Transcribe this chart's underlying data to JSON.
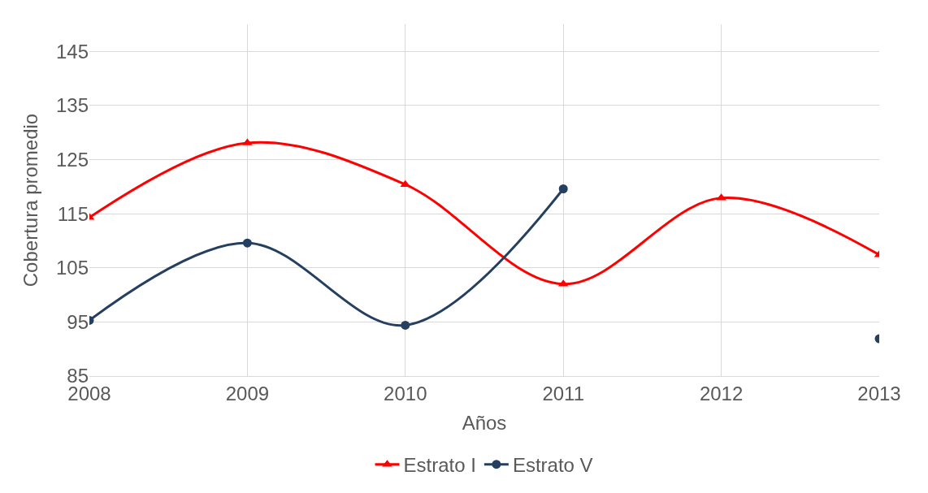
{
  "chart_data": {
    "type": "line",
    "xlabel": "Años",
    "ylabel": "Cobertura promedio",
    "categories": [
      "2008",
      "2009",
      "2010",
      "2011",
      "2012",
      "2013"
    ],
    "series": [
      {
        "name": "Estrato I",
        "color": "#ff0000",
        "marker": "triangle",
        "values": [
          114.3,
          128.1,
          120.4,
          102.0,
          117.9,
          107.4
        ]
      },
      {
        "name": "Estrato V",
        "color": "#243f60",
        "marker": "circle",
        "values": [
          95.3,
          109.6,
          94.4,
          119.6,
          null,
          91.9
        ]
      }
    ],
    "ylim": [
      85,
      150
    ],
    "yticks": [
      85,
      95,
      105,
      115,
      125,
      135,
      145
    ],
    "grid": true,
    "legend": "bottom"
  }
}
